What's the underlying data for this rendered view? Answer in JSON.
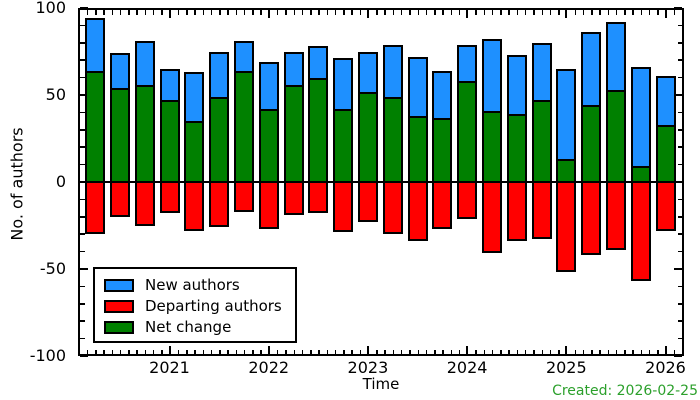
{
  "chart_data": {
    "type": "bar",
    "title": "",
    "xlabel": "Time",
    "ylabel": "No. of authors",
    "ylim": [
      -100,
      100
    ],
    "xlim_years": [
      2020.08,
      2026.19
    ],
    "grid": false,
    "legend_position": "lower left",
    "tick_style": "inward ticks mirrored on top and right; monthly x minors; y minors every 10",
    "categories": [
      "2020-Q2",
      "2020-Q3",
      "2020-Q4",
      "2021-Q1",
      "2021-Q2",
      "2021-Q3",
      "2021-Q4",
      "2022-Q1",
      "2022-Q2",
      "2022-Q3",
      "2022-Q4",
      "2023-Q1",
      "2023-Q2",
      "2023-Q3",
      "2023-Q4",
      "2024-Q1",
      "2024-Q2",
      "2024-Q3",
      "2024-Q4",
      "2025-Q1",
      "2025-Q2",
      "2025-Q3",
      "2025-Q4",
      "2026-Q1"
    ],
    "x": [
      2020.25,
      2020.5,
      2020.75,
      2021.0,
      2021.25,
      2021.5,
      2021.75,
      2022.0,
      2022.25,
      2022.5,
      2022.75,
      2023.0,
      2023.25,
      2023.5,
      2023.75,
      2024.0,
      2024.25,
      2024.5,
      2024.75,
      2025.0,
      2025.25,
      2025.5,
      2025.75,
      2026.0
    ],
    "x_ticks": [
      2021,
      2022,
      2023,
      2024,
      2025,
      2026
    ],
    "x_tick_labels": [
      "2021",
      "2022",
      "2023",
      "2024",
      "2025",
      "2026"
    ],
    "y_ticks": [
      -100,
      -50,
      0,
      50,
      100
    ],
    "y_tick_labels": [
      "-100",
      "-50",
      "0",
      "50",
      "100"
    ],
    "y_minor_step": 10,
    "series": [
      {
        "name": "New authors",
        "color": "#1E90FF",
        "values": [
          94,
          74,
          81,
          65,
          63,
          75,
          81,
          69,
          75,
          78,
          71,
          75,
          79,
          72,
          64,
          79,
          82,
          73,
          80,
          65,
          86,
          92,
          66,
          61
        ]
      },
      {
        "name": "Departing authors",
        "color": "#FF0000",
        "values": [
          -30,
          -20,
          -25,
          -18,
          -28,
          -26,
          -17,
          -27,
          -19,
          -18,
          -29,
          -23,
          -30,
          -34,
          -27,
          -21,
          -41,
          -34,
          -33,
          -52,
          -42,
          -39,
          -57,
          -28
        ]
      },
      {
        "name": "Net change",
        "color": "#008000",
        "values": [
          64,
          54,
          56,
          47,
          35,
          49,
          64,
          42,
          56,
          60,
          42,
          52,
          49,
          38,
          37,
          58,
          41,
          39,
          47,
          13,
          44,
          53,
          9,
          33
        ]
      }
    ]
  },
  "annotations": {
    "created_label": "Created: 2026-02-25",
    "created_color": "#2CA02C"
  }
}
